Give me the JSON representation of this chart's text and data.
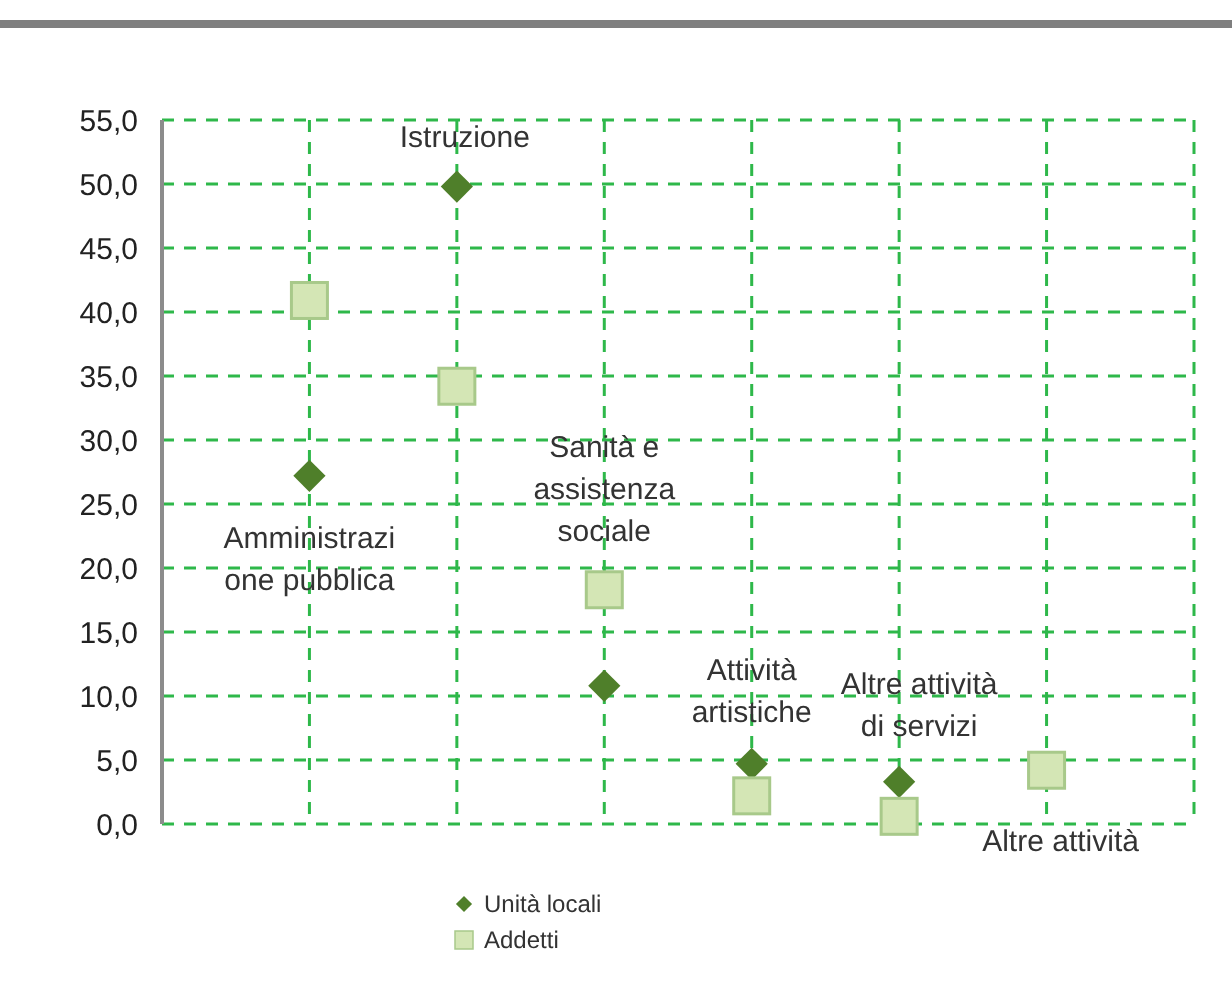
{
  "chart_data": {
    "type": "scatter",
    "categories": [
      null,
      null,
      null,
      null,
      null,
      null
    ],
    "ylim": [
      0,
      55
    ],
    "yticks": [
      {
        "value": 0,
        "label": "0,0"
      },
      {
        "value": 5,
        "label": "5,0"
      },
      {
        "value": 10,
        "label": "10,0"
      },
      {
        "value": 15,
        "label": "15,0"
      },
      {
        "value": 20,
        "label": "20,0"
      },
      {
        "value": 25,
        "label": "25,0"
      },
      {
        "value": 30,
        "label": "30,0"
      },
      {
        "value": 35,
        "label": "35,0"
      },
      {
        "value": 40,
        "label": "40,0"
      },
      {
        "value": 45,
        "label": "45,0"
      },
      {
        "value": 50,
        "label": "50,0"
      },
      {
        "value": 55,
        "label": "55,0"
      }
    ],
    "tick_labels": "y",
    "grid": true,
    "legend": "bottom",
    "series": [
      {
        "name": "Unità locali",
        "color": "#4f7f2a",
        "marker": "diamond",
        "values": [
          27.2,
          49.8,
          10.8,
          4.7,
          3.3,
          null
        ]
      },
      {
        "name": "Addetti",
        "color": "#d4e6b5",
        "marker": "square",
        "values": [
          40.9,
          34.2,
          18.3,
          2.2,
          0.6,
          4.2
        ]
      }
    ],
    "annotations": [
      "Amministrazi\none pubblica",
      "Istruzione",
      "Sanità e\nassistenza\nsociale",
      "Attività\nartistiche",
      "Altre attività\ndi servizi",
      "Altre attività"
    ]
  }
}
